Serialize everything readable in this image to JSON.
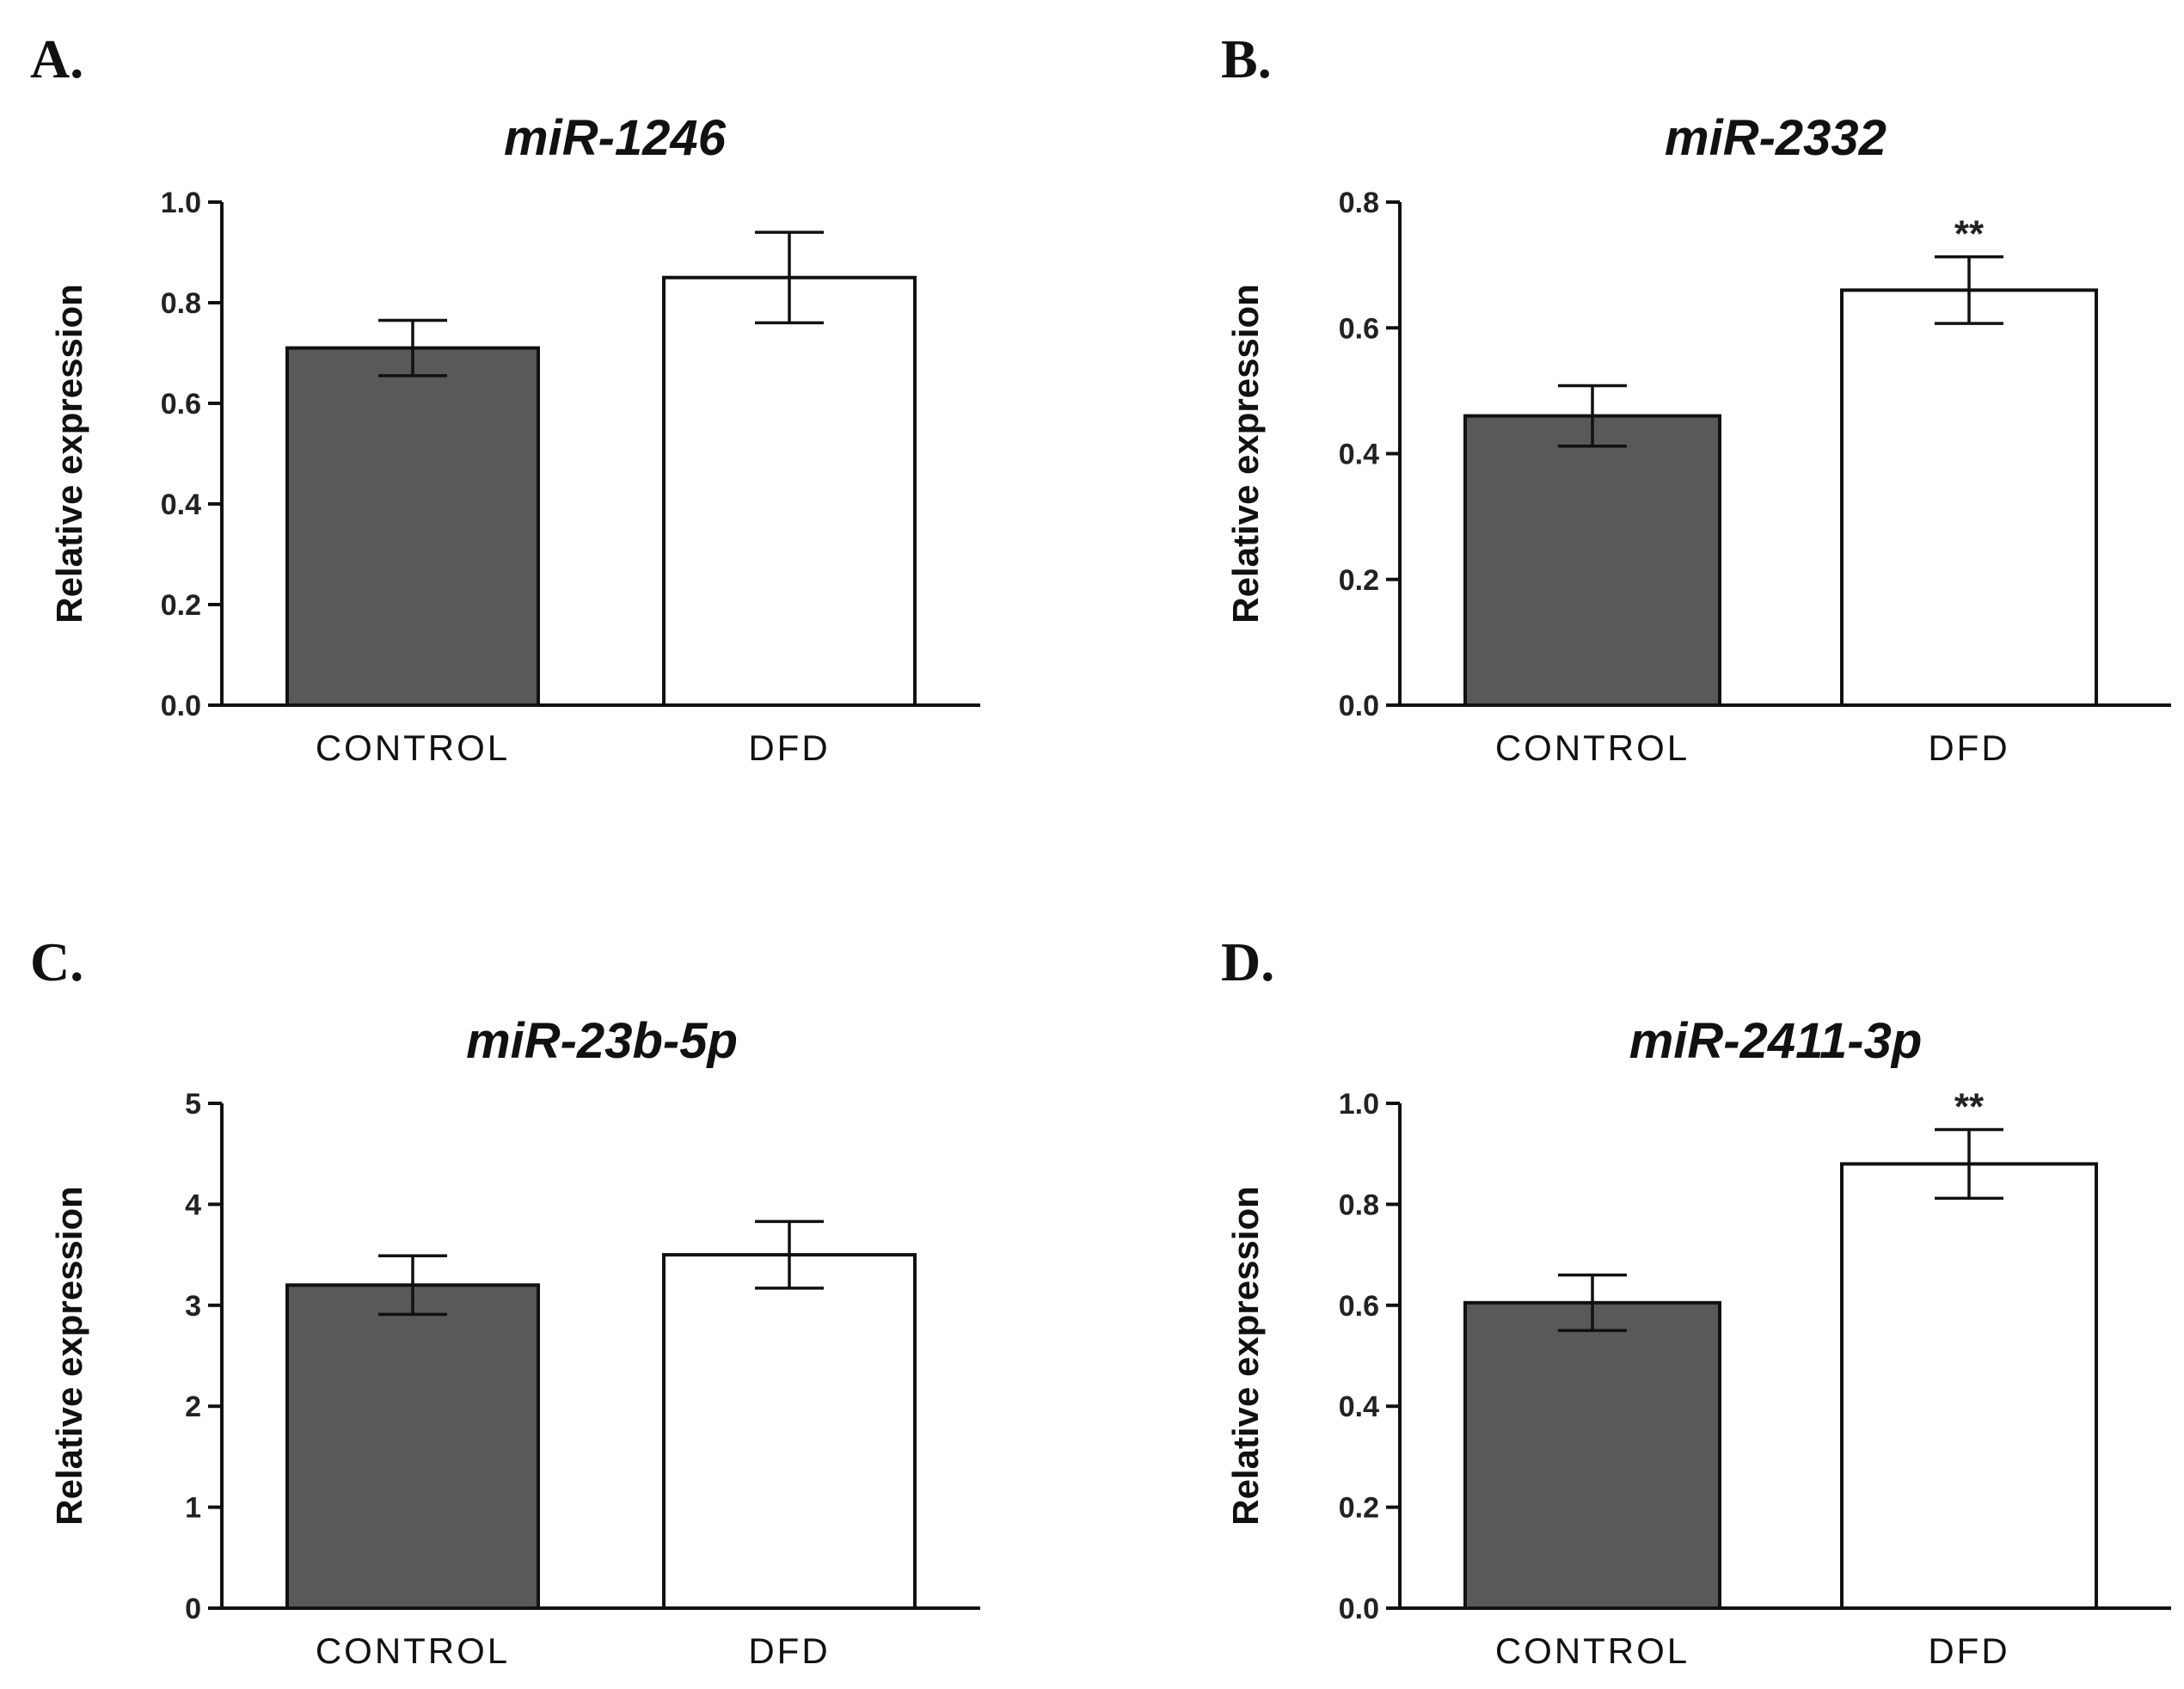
{
  "chart_data": [
    {
      "panel": "A.",
      "type": "bar",
      "title": "miR-1246",
      "ylabel": "Relative expression",
      "xlabel": "",
      "categories": [
        "CONTROL",
        "DFD"
      ],
      "values": [
        0.71,
        0.85
      ],
      "errors": [
        0.055,
        0.09
      ],
      "significance": [
        "",
        ""
      ],
      "ylim": [
        0,
        1.0
      ],
      "yticks": [
        0.0,
        0.2,
        0.4,
        0.6,
        0.8,
        1.0
      ],
      "ytick_labels": [
        "0.0",
        "0.2",
        "0.4",
        "0.6",
        "0.8",
        "1.0"
      ],
      "bar_colors": [
        "#595959",
        "#ffffff"
      ],
      "grid": false
    },
    {
      "panel": "B.",
      "type": "bar",
      "title": "miR-2332",
      "ylabel": "Relative expression",
      "xlabel": "",
      "categories": [
        "CONTROL",
        "DFD"
      ],
      "values": [
        0.46,
        0.66
      ],
      "errors": [
        0.048,
        0.053
      ],
      "significance": [
        "",
        "**"
      ],
      "ylim": [
        0,
        0.8
      ],
      "yticks": [
        0.0,
        0.2,
        0.4,
        0.6,
        0.8
      ],
      "ytick_labels": [
        "0.0",
        "0.2",
        "0.4",
        "0.6",
        "0.8"
      ],
      "bar_colors": [
        "#595959",
        "#ffffff"
      ],
      "grid": false
    },
    {
      "panel": "C.",
      "type": "bar",
      "title": "miR-23b-5p",
      "ylabel": "Relative expression",
      "xlabel": "",
      "categories": [
        "CONTROL",
        "DFD"
      ],
      "values": [
        3.2,
        3.5
      ],
      "errors": [
        0.29,
        0.33
      ],
      "significance": [
        "",
        ""
      ],
      "ylim": [
        0,
        5
      ],
      "yticks": [
        0,
        1,
        2,
        3,
        4,
        5
      ],
      "ytick_labels": [
        "0",
        "1",
        "2",
        "3",
        "4",
        "5"
      ],
      "bar_colors": [
        "#595959",
        "#ffffff"
      ],
      "grid": false
    },
    {
      "panel": "D.",
      "type": "bar",
      "title": "miR-2411-3p",
      "ylabel": "Relative expression",
      "xlabel": "",
      "categories": [
        "CONTROL",
        "DFD"
      ],
      "values": [
        0.605,
        0.88
      ],
      "errors": [
        0.055,
        0.068
      ],
      "significance": [
        "",
        "**"
      ],
      "ylim": [
        0,
        1.0
      ],
      "yticks": [
        0.0,
        0.2,
        0.4,
        0.6,
        0.8,
        1.0
      ],
      "ytick_labels": [
        "0.0",
        "0.2",
        "0.4",
        "0.6",
        "0.8",
        "1.0"
      ],
      "bar_colors": [
        "#595959",
        "#ffffff"
      ],
      "grid": false
    }
  ]
}
